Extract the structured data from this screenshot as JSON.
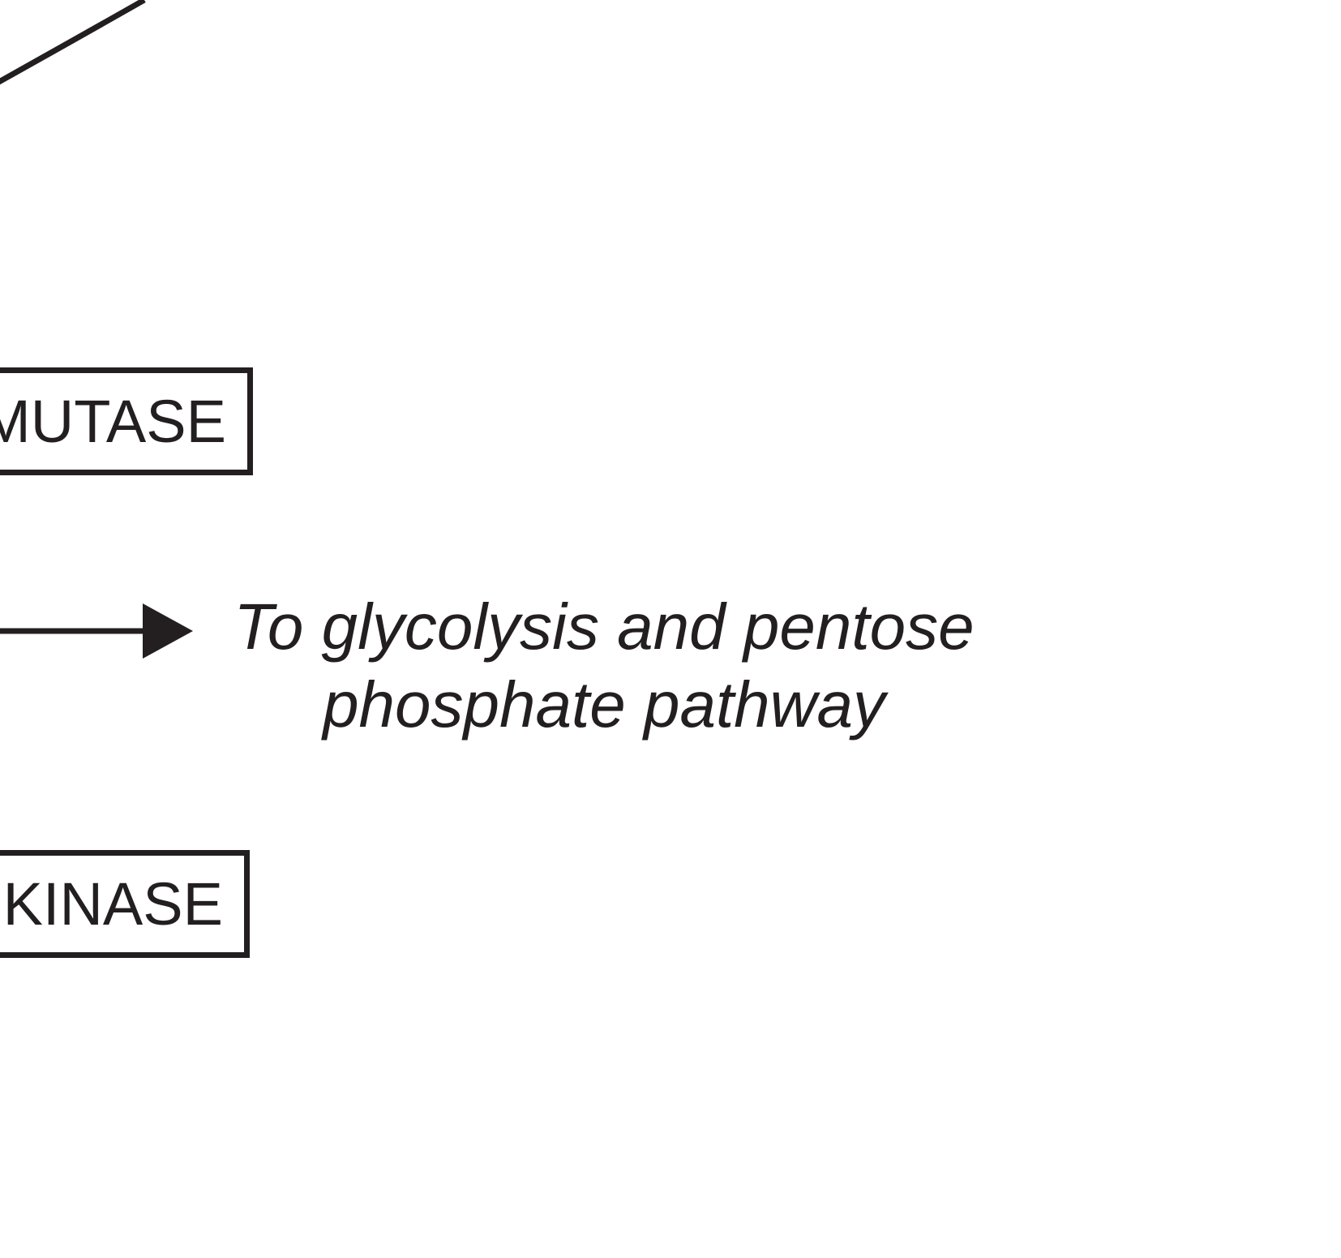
{
  "boxes": {
    "mutase": {
      "label": "MUTASE"
    },
    "kinase": {
      "label": "KINASE"
    }
  },
  "destination": {
    "line1": "To glycolysis and pentose",
    "line2": "phosphate pathway"
  },
  "colors": {
    "ink": "#231f20",
    "background": "#ffffff"
  }
}
